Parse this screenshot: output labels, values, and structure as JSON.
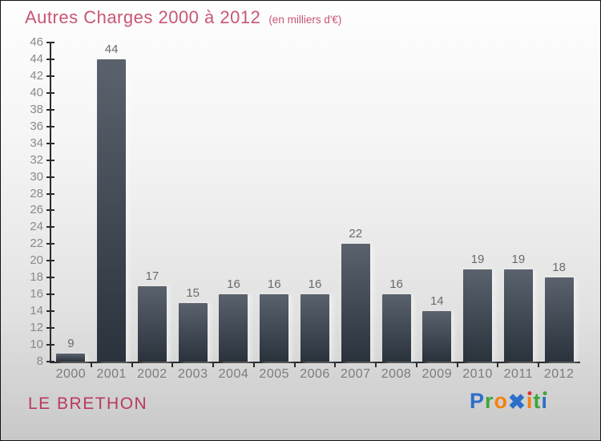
{
  "title": {
    "text": "Autres Charges 2000 à 2012",
    "subtitle": "(en milliers d'€)",
    "color": "#c85672"
  },
  "footer": {
    "place": "LE BRETHON",
    "place_color": "#b93a5c"
  },
  "logo": {
    "text": "Proxiti",
    "letters": [
      {
        "ch": "P",
        "color": "#2b6fc9"
      },
      {
        "ch": "r",
        "color": "#3fa53c"
      },
      {
        "ch": "o",
        "color": "#f5820c"
      },
      {
        "ch": "x",
        "color": "#2b6fc9",
        "glyph": "✖",
        "big": true
      },
      {
        "ch": "i",
        "color": "#f5820c",
        "dot": "#e0312e"
      },
      {
        "ch": "t",
        "color": "#3fa53c"
      },
      {
        "ch": "i",
        "color": "#2b6fc9",
        "dot": "#3fa53c"
      }
    ]
  },
  "chart_data": {
    "type": "bar",
    "title": "Autres Charges 2000 à 2012",
    "subtitle": "(en milliers d'€)",
    "categories": [
      "2000",
      "2001",
      "2002",
      "2003",
      "2004",
      "2005",
      "2006",
      "2007",
      "2008",
      "2009",
      "2010",
      "2011",
      "2012"
    ],
    "values": [
      9,
      44,
      17,
      15,
      16,
      16,
      16,
      22,
      16,
      14,
      19,
      19,
      18
    ],
    "xlabel": "",
    "ylabel": "",
    "ylim": [
      8,
      46
    ],
    "ytick_step": 2,
    "grid": false,
    "legend": "none",
    "value_labels": true,
    "bar_color_top": "#5a626d",
    "bar_color_bottom": "#2a323c",
    "axis_color": "#2b2b2b"
  }
}
